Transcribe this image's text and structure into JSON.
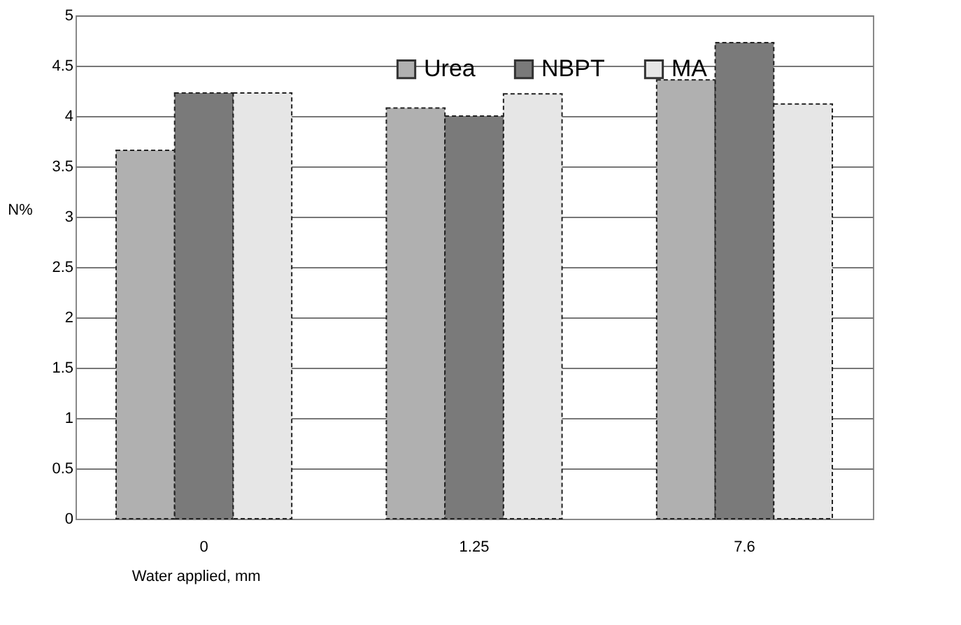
{
  "chart_data": {
    "type": "bar",
    "xlabel": "Water applied, mm",
    "ylabel": "N%",
    "categories": [
      "0",
      "1.25",
      "7.6"
    ],
    "series": [
      {
        "name": "Urea",
        "color": "#b0b0b0",
        "values": [
          3.66,
          4.08,
          4.36
        ]
      },
      {
        "name": "NBPT",
        "color": "#7a7a7a",
        "values": [
          4.23,
          4.0,
          4.73
        ]
      },
      {
        "name": "MA",
        "color": "#e6e6e6",
        "values": [
          4.23,
          4.22,
          4.12
        ]
      }
    ],
    "ylim": [
      0,
      5
    ],
    "yticks": [
      0,
      0.5,
      1,
      1.5,
      2,
      2.5,
      3,
      3.5,
      4,
      4.5,
      5
    ],
    "grid": "y",
    "legend": "top"
  }
}
